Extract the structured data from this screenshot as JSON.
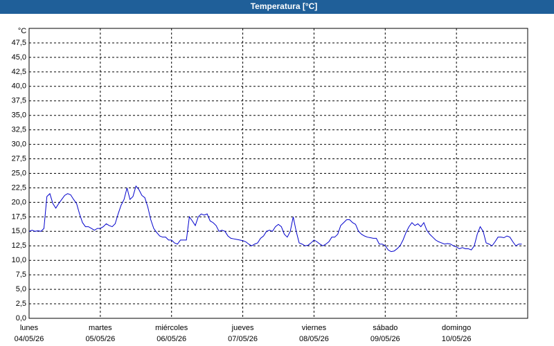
{
  "chart_data": {
    "type": "line",
    "title": "Temperatura [°C]",
    "y_unit": "°C",
    "ylim": [
      0,
      50
    ],
    "yticks": [
      {
        "value": 0,
        "label": "0,0"
      },
      {
        "value": 2.5,
        "label": "2,5"
      },
      {
        "value": 5,
        "label": "5,0"
      },
      {
        "value": 7.5,
        "label": "7,5"
      },
      {
        "value": 10,
        "label": "10,0"
      },
      {
        "value": 12.5,
        "label": "12,5"
      },
      {
        "value": 15,
        "label": "15,0"
      },
      {
        "value": 17.5,
        "label": "17,5"
      },
      {
        "value": 20,
        "label": "20,0"
      },
      {
        "value": 22.5,
        "label": "22,5"
      },
      {
        "value": 25,
        "label": "25,0"
      },
      {
        "value": 27.5,
        "label": "27,5"
      },
      {
        "value": 30,
        "label": "30,0"
      },
      {
        "value": 32.5,
        "label": "32,5"
      },
      {
        "value": 35,
        "label": "35,0"
      },
      {
        "value": 37.5,
        "label": "37,5"
      },
      {
        "value": 40,
        "label": "40,0"
      },
      {
        "value": 42.5,
        "label": "42,5"
      },
      {
        "value": 45,
        "label": "45,0"
      },
      {
        "value": 47.5,
        "label": "47,5"
      }
    ],
    "xlim": [
      0,
      168
    ],
    "xticks": [
      {
        "value": 0,
        "label": "lunes",
        "sublabel": "04/05/26"
      },
      {
        "value": 24,
        "label": "martes",
        "sublabel": "05/05/26"
      },
      {
        "value": 48,
        "label": "miércoles",
        "sublabel": "06/05/26"
      },
      {
        "value": 72,
        "label": "jueves",
        "sublabel": "07/05/26"
      },
      {
        "value": 96,
        "label": "viernes",
        "sublabel": "08/05/26"
      },
      {
        "value": 120,
        "label": "sábado",
        "sublabel": "09/05/26"
      },
      {
        "value": 144,
        "label": "domingo",
        "sublabel": "10/05/26"
      }
    ],
    "grid": true,
    "x": [
      0,
      1,
      2,
      3,
      4,
      5,
      6,
      7,
      8,
      9,
      10,
      11,
      12,
      13,
      14,
      15,
      16,
      17,
      18,
      19,
      20,
      21,
      22,
      23,
      24,
      25,
      26,
      27,
      28,
      29,
      30,
      31,
      32,
      33,
      34,
      35,
      36,
      37,
      38,
      39,
      40,
      41,
      42,
      43,
      44,
      45,
      46,
      47,
      48,
      49,
      50,
      51,
      52,
      53,
      54,
      55,
      56,
      57,
      58,
      59,
      60,
      61,
      62,
      63,
      64,
      65,
      66,
      67,
      68,
      69,
      70,
      71,
      72,
      73,
      74,
      75,
      76,
      77,
      78,
      79,
      80,
      81,
      82,
      83,
      84,
      85,
      86,
      87,
      88,
      89,
      90,
      91,
      92,
      93,
      94,
      95,
      96,
      97,
      98,
      99,
      100,
      101,
      102,
      103,
      104,
      105,
      106,
      107,
      108,
      109,
      110,
      111,
      112,
      113,
      114,
      115,
      116,
      117,
      118,
      119,
      120,
      121,
      122,
      123,
      124,
      125,
      126,
      127,
      128,
      129,
      130,
      131,
      132,
      133,
      134,
      135,
      136,
      137,
      138,
      139,
      140,
      141,
      142,
      143,
      144,
      145,
      146,
      147,
      148,
      149,
      150,
      151,
      152,
      153,
      154,
      155,
      156,
      157,
      158,
      159,
      160,
      161,
      162,
      163,
      164,
      165,
      166
    ],
    "series": [
      {
        "name": "Temperatura",
        "color": "#0000cc",
        "values": [
          15.0,
          15.2,
          15.0,
          15.1,
          15.0,
          15.5,
          21.0,
          21.5,
          19.8,
          19.0,
          19.8,
          20.5,
          21.2,
          21.5,
          21.3,
          20.5,
          19.8,
          18.0,
          16.5,
          15.8,
          15.8,
          15.5,
          15.2,
          15.5,
          15.5,
          15.8,
          16.3,
          16.0,
          15.8,
          16.3,
          18.0,
          19.5,
          20.5,
          22.5,
          20.5,
          21.0,
          22.8,
          22.2,
          21.2,
          20.8,
          19.2,
          17.0,
          15.5,
          14.8,
          14.2,
          14.0,
          14.0,
          13.5,
          13.5,
          13.0,
          12.8,
          13.5,
          13.5,
          13.5,
          17.5,
          16.8,
          16.0,
          17.5,
          18.0,
          17.8,
          18.0,
          16.8,
          16.5,
          16.0,
          15.0,
          15.2,
          15.0,
          14.2,
          13.8,
          13.7,
          13.6,
          13.5,
          13.4,
          13.2,
          12.8,
          12.5,
          12.8,
          13.0,
          13.8,
          14.2,
          15.0,
          15.2,
          15.0,
          15.8,
          16.2,
          15.8,
          14.5,
          14.0,
          15.0,
          17.5,
          15.0,
          13.0,
          12.8,
          12.5,
          12.6,
          13.0,
          13.5,
          13.2,
          12.8,
          12.5,
          12.8,
          13.2,
          14.0,
          14.0,
          14.5,
          16.0,
          16.5,
          17.0,
          17.0,
          16.5,
          16.2,
          15.0,
          14.5,
          14.2,
          14.0,
          13.9,
          13.8,
          13.8,
          12.8,
          12.8,
          12.5,
          11.8,
          11.5,
          11.6,
          12.0,
          12.5,
          13.5,
          14.8,
          15.8,
          16.5,
          16.0,
          16.3,
          15.8,
          16.5,
          15.2,
          14.5,
          14.0,
          13.5,
          13.2,
          13.0,
          12.8,
          12.9,
          12.8,
          12.5,
          12.3,
          12.0,
          12.2,
          12.0,
          12.0,
          11.8,
          12.5,
          14.5,
          15.8,
          15.0,
          13.0,
          12.8,
          12.5,
          13.2,
          14.0,
          14.0,
          13.9,
          14.2,
          14.0,
          13.2,
          12.5,
          12.8,
          12.8
        ]
      }
    ]
  }
}
